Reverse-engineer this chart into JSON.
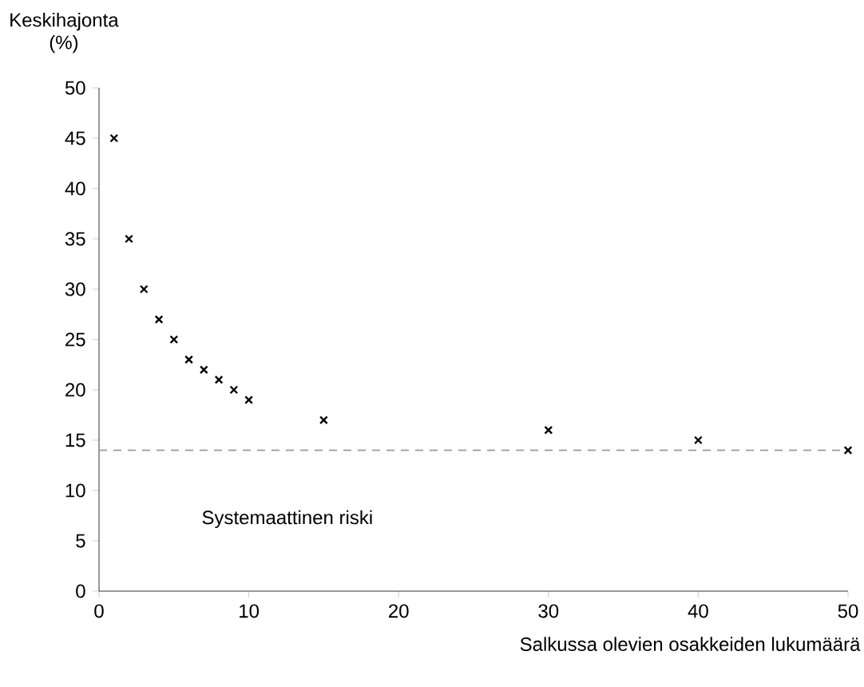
{
  "chart_data": {
    "type": "scatter",
    "xlabel": "Salkussa olevien osakkeiden lukumäärä",
    "ylabel": "Keskihajonta (%)",
    "x": [
      1,
      2,
      3,
      4,
      5,
      6,
      7,
      8,
      9,
      10,
      15,
      30,
      40,
      50
    ],
    "values": [
      45,
      35,
      30,
      27,
      25,
      23,
      22,
      21,
      20,
      19,
      17,
      16,
      15,
      14
    ],
    "color": "#000000",
    "marker": "cross",
    "xlim": [
      0,
      50
    ],
    "xticks": [
      0,
      10,
      20,
      30,
      40,
      50
    ],
    "ylim": [
      0,
      50
    ],
    "yticks": [
      0,
      5,
      10,
      15,
      20,
      25,
      30,
      35,
      40,
      45,
      50
    ],
    "ref_lines": [
      {
        "axis": "y",
        "value": 14,
        "color": "#999999",
        "line_style": "dashed"
      }
    ],
    "annotations": [
      "Systemaattinen riski"
    ],
    "grid": false
  }
}
